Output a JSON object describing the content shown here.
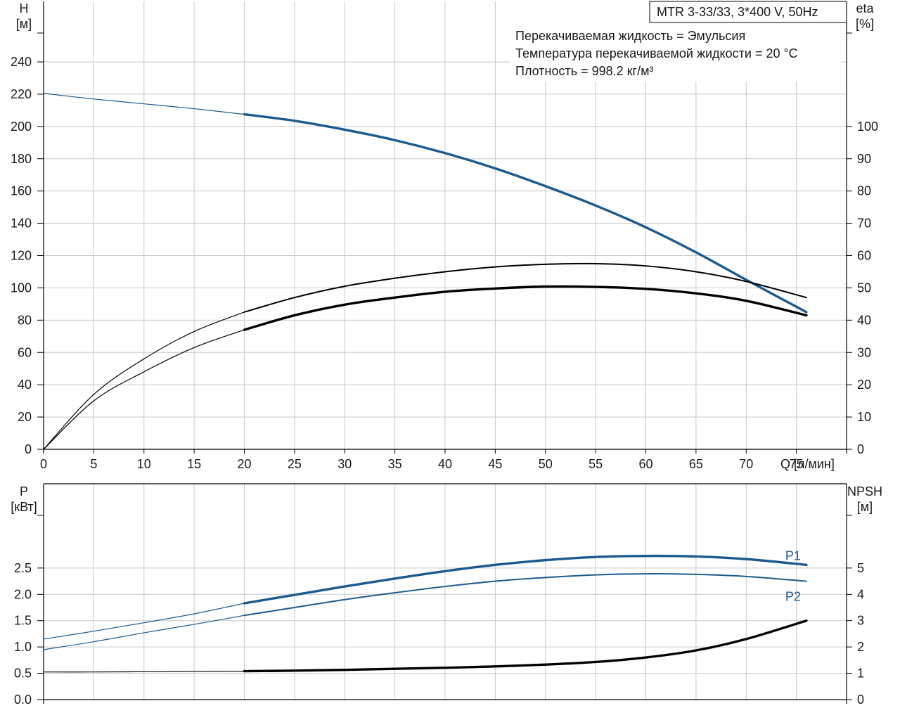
{
  "colors": {
    "blue": "#1c5a8e",
    "black": "#000000",
    "grid": "#c8c8c8",
    "frame": "#000000"
  },
  "chart_data": [
    {
      "type": "line",
      "title": "MTR 3-33/33, 3*400 V, 50Hz",
      "annotations": [
        "Перекачиваемая жидкость = Эмульсия",
        "Температура перекачиваемой жидкости = 20 °C",
        "Плотность = 998.2 кг/м³"
      ],
      "xlabel": "Q [л/мин]",
      "xlim": [
        0,
        80
      ],
      "xticks": [
        0,
        5,
        10,
        15,
        20,
        25,
        30,
        35,
        40,
        45,
        50,
        55,
        60,
        65,
        70,
        75
      ],
      "ylabel_left": [
        "H",
        "[м]"
      ],
      "ylim_left": [
        0,
        240
      ],
      "yticks_left": [
        0,
        20,
        40,
        60,
        80,
        100,
        120,
        140,
        160,
        180,
        200,
        220,
        240
      ],
      "ylabel_right": [
        "eta",
        "[%]"
      ],
      "ylim_right": [
        0,
        120
      ],
      "yticks_right": [
        0,
        10,
        20,
        30,
        40,
        50,
        60,
        70,
        80,
        90,
        100
      ],
      "grid": true,
      "series": [
        {
          "axis": "left",
          "color": "blue",
          "extended_until": 20,
          "x": [
            0,
            5,
            10,
            15,
            20,
            25,
            30,
            35,
            40,
            45,
            50,
            55,
            60,
            65,
            70,
            76
          ],
          "y": [
            220.5,
            217,
            214,
            211,
            207.5,
            203.5,
            198,
            191.5,
            183.5,
            174,
            163,
            151,
            137.5,
            122,
            105,
            85
          ]
        },
        {
          "axis": "right",
          "color": "black",
          "extended_until": 20,
          "x": [
            0,
            5,
            10,
            15,
            20,
            25,
            30,
            35,
            40,
            45,
            50,
            55,
            60,
            65,
            70,
            76
          ],
          "y": [
            0,
            17,
            28,
            36.5,
            42.5,
            47,
            50.5,
            53,
            55,
            56.5,
            57.3,
            57.5,
            56.8,
            55,
            52,
            47
          ]
        },
        {
          "axis": "right",
          "color": "black",
          "extended_until": 20,
          "x": [
            0,
            5,
            10,
            15,
            20,
            25,
            30,
            35,
            40,
            45,
            50,
            55,
            60,
            65,
            70,
            76
          ],
          "y": [
            0,
            15,
            24,
            31.5,
            37,
            41.5,
            44.8,
            47,
            48.8,
            49.8,
            50.4,
            50.3,
            49.7,
            48.3,
            46,
            41.5
          ]
        }
      ]
    },
    {
      "type": "line",
      "xlim": [
        0,
        80
      ],
      "xticks": [
        0,
        5,
        10,
        15,
        20,
        25,
        30,
        35,
        40,
        45,
        50,
        55,
        60,
        65,
        70,
        75
      ],
      "ylabel_left": [
        "P",
        "[кВт]"
      ],
      "ylim_left": [
        0,
        3.5
      ],
      "yticks_left": [
        "0.0",
        "0.5",
        "1.0",
        "1.5",
        "2.0",
        "2.5"
      ],
      "ylabel_right": [
        "NPSH",
        "[м]"
      ],
      "ylim_right": [
        0,
        7
      ],
      "yticks_right": [
        0,
        1,
        2,
        3,
        4,
        5
      ],
      "grid": true,
      "series": [
        {
          "name": "P1",
          "axis": "left",
          "color": "blue",
          "extended_until": 20,
          "x": [
            0,
            5,
            10,
            15,
            20,
            25,
            30,
            35,
            40,
            45,
            50,
            55,
            60,
            65,
            70,
            76
          ],
          "y": [
            1.15,
            1.3,
            1.46,
            1.63,
            1.83,
            1.99,
            2.15,
            2.3,
            2.44,
            2.56,
            2.65,
            2.71,
            2.73,
            2.72,
            2.67,
            2.56
          ]
        },
        {
          "name": "P2",
          "axis": "left",
          "color": "blue",
          "extended_until": 20,
          "x": [
            0,
            5,
            10,
            15,
            20,
            25,
            30,
            35,
            40,
            45,
            50,
            55,
            60,
            65,
            70,
            76
          ],
          "y": [
            0.95,
            1.1,
            1.27,
            1.43,
            1.6,
            1.75,
            1.9,
            2.03,
            2.15,
            2.25,
            2.32,
            2.37,
            2.39,
            2.38,
            2.34,
            2.25
          ]
        },
        {
          "axis": "right",
          "color": "black",
          "extended_until": 20,
          "x": [
            0,
            5,
            10,
            15,
            20,
            25,
            30,
            35,
            40,
            45,
            50,
            55,
            60,
            65,
            70,
            76
          ],
          "y": [
            1.05,
            1.05,
            1.06,
            1.07,
            1.08,
            1.1,
            1.13,
            1.17,
            1.21,
            1.26,
            1.33,
            1.43,
            1.6,
            1.87,
            2.3,
            3.0
          ]
        }
      ]
    }
  ]
}
